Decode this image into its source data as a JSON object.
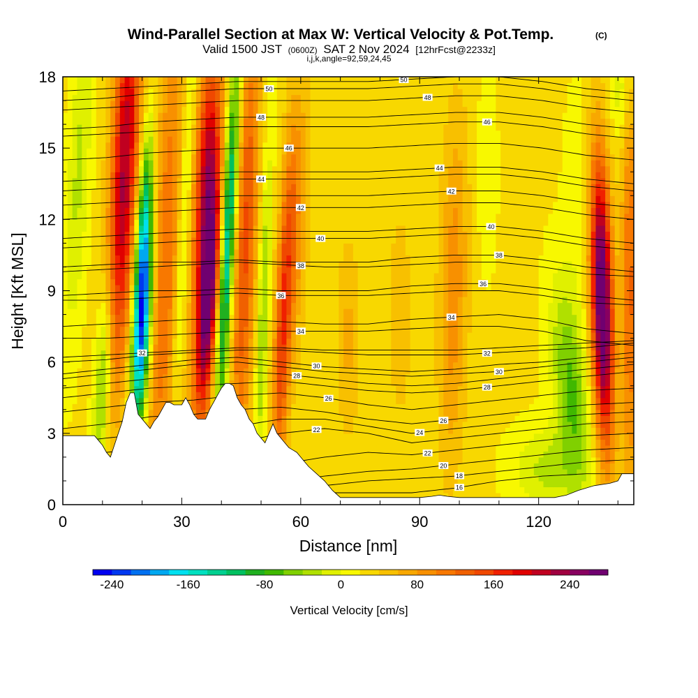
{
  "chart_data": {
    "type": "heatmap",
    "title": "Wind-Parallel Section at Max W: Vertical Velocity & Pot.Temp.",
    "copyright_mark": "(C)",
    "subtitle": {
      "valid_prefix": "Valid 1500 JST",
      "utc": "(0600Z)",
      "date": "SAT 2 Nov 2024",
      "forecast": "[12hrFcst@2233z]"
    },
    "grid_info": "i,j,k,angle=92,59,24,45",
    "xlabel": "Distance [nm]",
    "ylabel": "Height [Kft MSL]",
    "xlim": [
      0,
      144
    ],
    "ylim": [
      0,
      18
    ],
    "x_ticks": [
      0,
      30,
      60,
      90,
      120
    ],
    "x_tick_labels": [
      "0",
      "30",
      "60",
      "90",
      "120"
    ],
    "y_ticks": [
      0,
      3,
      6,
      9,
      12,
      15,
      18
    ],
    "y_tick_labels": [
      "0",
      "3",
      "6",
      "9",
      "12",
      "15",
      "18"
    ],
    "colorbar": {
      "title": "Vertical Velocity [cm/s]",
      "tick_values": [
        -240,
        -160,
        -80,
        0,
        80,
        160,
        240
      ],
      "tick_labels": [
        "-240",
        "-160",
        "-80",
        "0",
        "80",
        "160",
        "240"
      ],
      "min": -260,
      "max": 280,
      "step": 20,
      "colors": [
        "#0000f0",
        "#0038f0",
        "#0070f0",
        "#00a8f0",
        "#00e0f0",
        "#00e0c0",
        "#00d090",
        "#00c060",
        "#20b020",
        "#40b800",
        "#80d000",
        "#b0e000",
        "#e0f000",
        "#f8f800",
        "#f8d800",
        "#f8c000",
        "#f8a800",
        "#f89000",
        "#f87800",
        "#f06000",
        "#f04800",
        "#f02000",
        "#e00000",
        "#c00020",
        "#a00040",
        "#880060",
        "#700070"
      ]
    },
    "terrain_profile": {
      "x": [
        0,
        4,
        8,
        10,
        11,
        12,
        13,
        14,
        15,
        16,
        17,
        18,
        19,
        20,
        21,
        22,
        23,
        24,
        25,
        26,
        27,
        28,
        29,
        30,
        31,
        32,
        33,
        34,
        35,
        36,
        37,
        38,
        39,
        40,
        41,
        42,
        43,
        44,
        45,
        46,
        47,
        48,
        49,
        50,
        51,
        52,
        53,
        54,
        55,
        56,
        57,
        58,
        59,
        60,
        61,
        62,
        64,
        66,
        68,
        70,
        74,
        80,
        86,
        90,
        93,
        95,
        97,
        100,
        104,
        110,
        115,
        120,
        124,
        127,
        130,
        134,
        138,
        140,
        141,
        144
      ],
      "height_kft": [
        2.9,
        2.9,
        2.9,
        2.5,
        2.2,
        2.0,
        2.5,
        3.0,
        3.5,
        4.3,
        4.7,
        4.7,
        3.8,
        3.6,
        3.4,
        3.2,
        3.5,
        3.7,
        4.0,
        4.3,
        4.3,
        4.2,
        4.2,
        4.2,
        4.5,
        4.2,
        3.8,
        3.6,
        3.6,
        3.6,
        4.0,
        4.3,
        4.6,
        4.9,
        5.1,
        5.1,
        5.0,
        4.5,
        4.2,
        4.0,
        3.6,
        3.4,
        3.0,
        2.8,
        2.6,
        3.0,
        3.4,
        3.0,
        2.8,
        2.6,
        2.4,
        2.3,
        2.2,
        2.0,
        1.8,
        1.6,
        1.3,
        1.0,
        0.6,
        0.3,
        0.3,
        0.3,
        0.3,
        0.3,
        0.35,
        0.4,
        0.35,
        0.3,
        0.3,
        0.3,
        0.3,
        0.3,
        0.3,
        0.4,
        0.6,
        0.8,
        0.9,
        1.0,
        1.3,
        1.3
      ]
    },
    "vertical_velocity_cores": [
      {
        "x": 15.5,
        "y": 14.0,
        "sx": 2.4,
        "sy": 6.0,
        "w": 200,
        "tilt": 0.25
      },
      {
        "x": 20.0,
        "y": 7.5,
        "sx": 1.6,
        "sy": 3.2,
        "w": -250,
        "tilt": 0.3
      },
      {
        "x": 20.5,
        "y": 12.0,
        "sx": 1.3,
        "sy": 3.0,
        "w": -130,
        "tilt": 0.3
      },
      {
        "x": 26.0,
        "y": 10.0,
        "sx": 3.0,
        "sy": 8.0,
        "w": 95,
        "tilt": 0.25
      },
      {
        "x": 30.5,
        "y": 12.0,
        "sx": 1.2,
        "sy": 6.0,
        "w": -70,
        "tilt": 0.3
      },
      {
        "x": 36.5,
        "y": 8.5,
        "sx": 2.0,
        "sy": 3.6,
        "w": 250,
        "tilt": 0.35
      },
      {
        "x": 36.5,
        "y": 14.5,
        "sx": 2.2,
        "sy": 3.5,
        "w": 170,
        "tilt": 0.3
      },
      {
        "x": 41.5,
        "y": 11.0,
        "sx": 1.3,
        "sy": 5.5,
        "w": -190,
        "tilt": 0.3
      },
      {
        "x": 46.0,
        "y": 11.0,
        "sx": 2.0,
        "sy": 7.0,
        "w": 120,
        "tilt": 0.2
      },
      {
        "x": 50.5,
        "y": 8.0,
        "sx": 1.0,
        "sy": 5.0,
        "w": -70,
        "tilt": 0.2
      },
      {
        "x": 55.5,
        "y": 7.5,
        "sx": 1.5,
        "sy": 5.0,
        "w": 130,
        "tilt": 0.25
      },
      {
        "x": 59.0,
        "y": 12.0,
        "sx": 2.0,
        "sy": 4.0,
        "w": 60,
        "tilt": 0.2
      },
      {
        "x": 98.5,
        "y": 9.0,
        "sx": 2.5,
        "sy": 5.0,
        "w": 70,
        "tilt": 0.1
      },
      {
        "x": 85.0,
        "y": 8.0,
        "sx": 2.0,
        "sy": 3.0,
        "w": 35,
        "tilt": 0.0
      },
      {
        "x": 72.0,
        "y": 7.0,
        "sx": 2.0,
        "sy": 3.0,
        "w": 40,
        "tilt": 0.0
      },
      {
        "x": 107.0,
        "y": 14.0,
        "sx": 1.8,
        "sy": 3.0,
        "w": -20,
        "tilt": 0.0
      },
      {
        "x": 128.0,
        "y": 5.0,
        "sx": 3.0,
        "sy": 3.0,
        "w": -90,
        "tilt": -0.5
      },
      {
        "x": 122.0,
        "y": 1.5,
        "sx": 6.0,
        "sy": 1.3,
        "w": -50,
        "tilt": 0.0
      },
      {
        "x": 136.0,
        "y": 8.5,
        "sx": 1.9,
        "sy": 4.2,
        "w": 280,
        "tilt": -0.15
      },
      {
        "x": 143.0,
        "y": 9.0,
        "sx": 1.5,
        "sy": 6.0,
        "w": 100,
        "tilt": 0.0
      },
      {
        "x": 141.0,
        "y": 17.5,
        "sx": 2.0,
        "sy": 1.5,
        "w": -40,
        "tilt": 0.0
      },
      {
        "x": 4.0,
        "y": 14.0,
        "sx": 2.0,
        "sy": 5.0,
        "w": -50,
        "tilt": 0.3
      },
      {
        "x": 10.0,
        "y": 5.0,
        "sx": 1.4,
        "sy": 3.0,
        "w": -90,
        "tilt": 0.3
      },
      {
        "x": 130.0,
        "y": 13.0,
        "sx": 2.5,
        "sy": 3.0,
        "w": -25,
        "tilt": 0.0
      }
    ],
    "potential_temperature_contours": [
      {
        "label": "16",
        "height_kft": [
          0.3,
          0.3,
          0.3,
          0.3,
          0.3,
          0.3,
          0.5,
          0.5,
          0.5,
          0.7,
          1.0,
          1.2,
          1.3,
          1.3
        ],
        "label_x": 100
      },
      {
        "label": "18",
        "height_kft": [
          0.6,
          0.6,
          0.6,
          0.6,
          0.6,
          0.6,
          0.8,
          1.0,
          1.1,
          1.2,
          1.4,
          1.6,
          1.8,
          1.9
        ],
        "label_x": 100
      },
      {
        "label": "20",
        "height_kft": [
          1.0,
          1.0,
          1.0,
          1.0,
          1.0,
          1.0,
          1.2,
          1.4,
          1.5,
          1.7,
          1.9,
          2.1,
          2.3,
          2.4
        ],
        "label_x": 96
      },
      {
        "label": "22",
        "height_kft": [
          1.4,
          1.4,
          1.4,
          1.5,
          1.6,
          1.7,
          2.0,
          2.2,
          2.1,
          2.3,
          2.5,
          2.7,
          2.9,
          3.0
        ],
        "label_x": 92
      },
      {
        "label": "22",
        "height_kft": [
          2.0,
          2.2,
          2.4,
          2.4,
          2.6,
          3.0,
          3.2,
          3.0,
          2.6,
          2.8,
          3.0,
          3.2,
          3.4,
          3.5
        ],
        "label_x": 64
      },
      {
        "label": "24",
        "height_kft": [
          2.6,
          2.8,
          3.0,
          3.1,
          3.3,
          3.6,
          3.6,
          3.3,
          3.0,
          3.2,
          3.4,
          3.6,
          3.8,
          3.9
        ],
        "label_x": 90
      },
      {
        "label": "26",
        "height_kft": [
          3.2,
          3.4,
          3.7,
          3.8,
          4.0,
          4.1,
          3.9,
          3.6,
          3.4,
          3.6,
          3.8,
          4.0,
          4.2,
          4.3
        ],
        "label_x": 96
      },
      {
        "label": "26",
        "height_kft": [
          3.9,
          4.1,
          4.3,
          4.4,
          4.6,
          4.7,
          4.5,
          4.2,
          4.0,
          4.2,
          4.4,
          4.6,
          4.8,
          4.9
        ],
        "label_x": 67
      },
      {
        "label": "28",
        "height_kft": [
          4.5,
          4.7,
          4.9,
          5.0,
          5.1,
          5.2,
          5.0,
          4.8,
          4.7,
          4.8,
          5.0,
          5.2,
          5.4,
          5.6
        ],
        "label_x": 107
      },
      {
        "label": "28",
        "height_kft": [
          4.9,
          5.1,
          5.3,
          5.5,
          5.6,
          5.5,
          5.3,
          5.1,
          5.0,
          5.1,
          5.3,
          5.5,
          5.7,
          5.9
        ],
        "label_x": 59
      },
      {
        "label": "30",
        "height_kft": [
          5.3,
          5.5,
          5.7,
          5.9,
          6.0,
          5.8,
          5.6,
          5.5,
          5.4,
          5.5,
          5.6,
          5.8,
          6.0,
          6.2
        ],
        "label_x": 110
      },
      {
        "label": "30",
        "height_kft": [
          5.5,
          5.7,
          5.9,
          6.1,
          6.2,
          6.0,
          5.8,
          5.7,
          5.6,
          5.7,
          5.9,
          6.0,
          6.2,
          6.4
        ],
        "label_x": 64
      },
      {
        "label": "32",
        "height_kft": [
          6.0,
          6.1,
          6.3,
          6.4,
          6.5,
          6.5,
          6.4,
          6.3,
          6.3,
          6.3,
          6.4,
          6.5,
          6.6,
          6.8
        ],
        "label_x": 107
      },
      {
        "label": "32",
        "height_kft": [
          6.2,
          6.3,
          6.4,
          6.5,
          6.6,
          6.6,
          6.5,
          6.5,
          6.5,
          6.5,
          6.6,
          6.7,
          6.8,
          6.9
        ],
        "label_x": 20
      },
      {
        "label": "34",
        "height_kft": [
          7.5,
          7.6,
          7.7,
          7.8,
          7.8,
          7.7,
          7.6,
          7.6,
          7.8,
          7.9,
          8.0,
          7.8,
          7.4,
          7.2
        ],
        "label_x": 98
      },
      {
        "label": "34",
        "height_kft": [
          7.0,
          7.0,
          7.1,
          7.2,
          7.3,
          7.3,
          7.3,
          7.3,
          7.4,
          7.5,
          7.5,
          7.3,
          6.9,
          6.7
        ],
        "label_x": 60
      },
      {
        "label": "36",
        "height_kft": [
          8.8,
          8.9,
          9.0,
          9.0,
          9.1,
          9.0,
          9.0,
          9.0,
          9.2,
          9.3,
          9.3,
          9.1,
          8.8,
          8.6
        ],
        "label_x": 106
      },
      {
        "label": "36",
        "height_kft": [
          8.6,
          8.6,
          8.7,
          8.8,
          8.9,
          8.8,
          8.8,
          8.8,
          8.9,
          9.0,
          9.0,
          8.8,
          8.5,
          8.4
        ],
        "label_x": 55
      },
      {
        "label": "38",
        "height_kft": [
          10.0,
          10.1,
          10.2,
          10.2,
          10.3,
          10.2,
          10.2,
          10.2,
          10.4,
          10.5,
          10.5,
          10.3,
          10.0,
          9.8
        ],
        "label_x": 110
      },
      {
        "label": "38",
        "height_kft": [
          9.8,
          9.9,
          10.0,
          10.1,
          10.2,
          10.1,
          10.0,
          10.0,
          10.1,
          10.2,
          10.2,
          10.0,
          9.7,
          9.6
        ],
        "label_x": 60
      },
      {
        "label": "40",
        "height_kft": [
          11.2,
          11.3,
          11.4,
          11.5,
          11.6,
          11.5,
          11.5,
          11.5,
          11.6,
          11.7,
          11.7,
          11.5,
          11.2,
          11.0
        ],
        "label_x": 108
      },
      {
        "label": "40",
        "height_kft": [
          10.8,
          10.9,
          11.0,
          11.1,
          11.2,
          11.2,
          11.2,
          11.2,
          11.3,
          11.4,
          11.4,
          11.2,
          10.9,
          10.7
        ],
        "label_x": 65
      },
      {
        "label": "42",
        "height_kft": [
          12.6,
          12.7,
          12.8,
          12.9,
          13.0,
          13.0,
          13.0,
          13.0,
          13.1,
          13.2,
          13.2,
          13.0,
          12.7,
          12.5
        ],
        "label_x": 98
      },
      {
        "label": "42",
        "height_kft": [
          12.0,
          12.1,
          12.3,
          12.4,
          12.5,
          12.5,
          12.5,
          12.5,
          12.6,
          12.7,
          12.7,
          12.5,
          12.2,
          12.0
        ],
        "label_x": 60
      },
      {
        "label": "44",
        "height_kft": [
          13.6,
          13.7,
          13.8,
          13.9,
          14.0,
          14.0,
          14.0,
          14.0,
          14.1,
          14.2,
          14.2,
          14.0,
          13.7,
          13.5
        ],
        "label_x": 95
      },
      {
        "label": "44",
        "height_kft": [
          13.2,
          13.3,
          13.5,
          13.6,
          13.7,
          13.7,
          13.7,
          13.7,
          13.8,
          13.9,
          13.9,
          13.7,
          13.4,
          13.2
        ],
        "label_x": 50
      },
      {
        "label": "46",
        "height_kft": [
          15.5,
          15.6,
          15.7,
          15.8,
          15.9,
          15.9,
          15.9,
          15.9,
          16.0,
          16.1,
          16.1,
          15.9,
          15.6,
          15.4
        ],
        "label_x": 107
      },
      {
        "label": "46",
        "height_kft": [
          14.5,
          14.6,
          14.8,
          14.9,
          15.0,
          15.0,
          15.0,
          15.0,
          15.1,
          15.2,
          15.2,
          15.0,
          14.7,
          14.5
        ],
        "label_x": 57
      },
      {
        "label": "48",
        "height_kft": [
          16.6,
          16.7,
          16.8,
          16.9,
          17.0,
          17.0,
          17.0,
          17.0,
          17.1,
          17.2,
          17.2,
          17.0,
          16.7,
          16.5
        ],
        "label_x": 92
      },
      {
        "label": "48",
        "height_kft": [
          15.8,
          15.9,
          16.1,
          16.2,
          16.3,
          16.3,
          16.3,
          16.3,
          16.4,
          16.5,
          16.5,
          16.3,
          16.0,
          15.8
        ],
        "label_x": 50
      },
      {
        "label": "50",
        "height_kft": [
          17.4,
          17.5,
          17.6,
          17.7,
          17.8,
          17.8,
          17.8,
          17.8,
          17.9,
          18.0,
          18.0,
          17.8,
          17.5,
          17.3
        ],
        "label_x": 86
      },
      {
        "label": "50",
        "height_kft": [
          17.0,
          17.1,
          17.3,
          17.4,
          17.5,
          17.5,
          17.5,
          17.5,
          17.6,
          17.7,
          17.7,
          17.5,
          17.2,
          17.0
        ],
        "label_x": 52
      }
    ],
    "contour_x_nodes": [
      0,
      11,
      22,
      33,
      44,
      55,
      66,
      77,
      88,
      99,
      110,
      121,
      132,
      144
    ]
  }
}
